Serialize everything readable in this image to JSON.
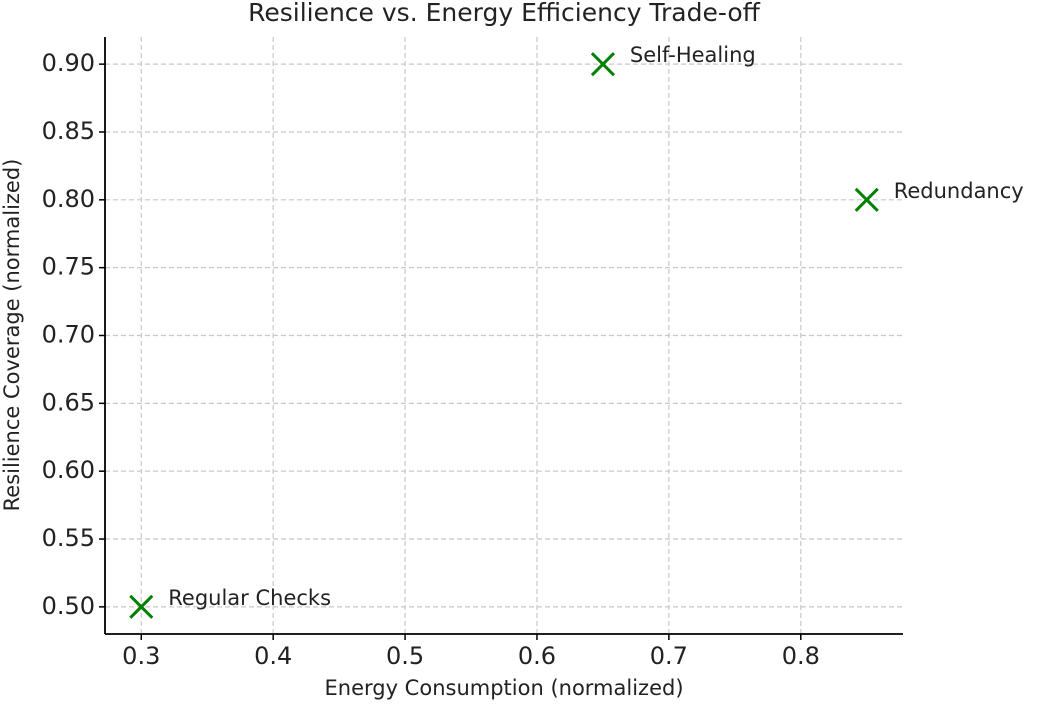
{
  "chart_data": {
    "type": "scatter",
    "title": "Resilience vs. Energy Efficiency Trade-off",
    "x_label": "Energy Consumption (normalized)",
    "y_label": "Resilience Coverage (normalized)",
    "series": [
      {
        "color": "#008000",
        "marker": "x",
        "labels": [
          "Regular Checks",
          "Self-Healing",
          "Redundancy"
        ],
        "x": [
          0.3,
          0.65,
          0.85
        ],
        "values": [
          0.5,
          0.9,
          0.8
        ]
      }
    ],
    "xlim": [
      0.2725,
      0.8775
    ],
    "ylim": [
      0.48,
      0.92
    ],
    "xticks": [
      0.3,
      0.4,
      0.5,
      0.6,
      0.7,
      0.8
    ],
    "yticks": [
      {
        "value": 0.5,
        "label": "0.50"
      },
      0.55,
      {
        "value": 0.6,
        "label": "0.60"
      },
      0.65,
      {
        "value": 0.7,
        "label": "0.70"
      },
      0.75,
      {
        "value": 0.8,
        "label": "0.80"
      },
      0.85,
      {
        "value": 0.9,
        "label": "0.90"
      }
    ],
    "grid": true
  }
}
